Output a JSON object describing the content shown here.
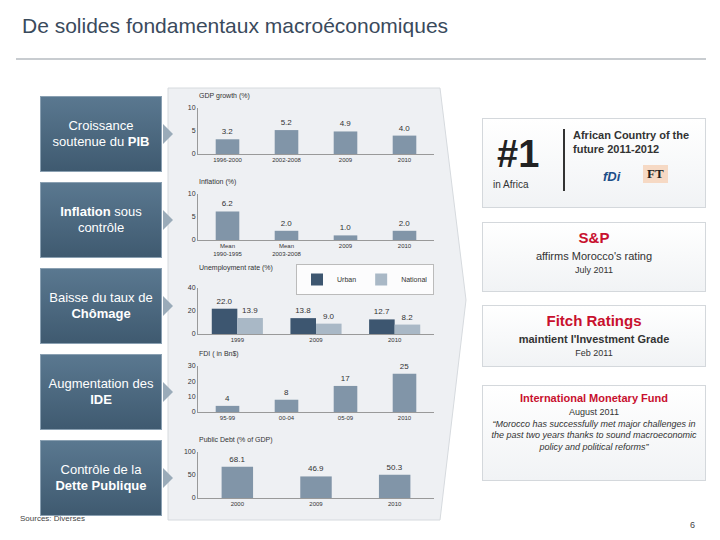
{
  "title": "De solides fondamentaux macroéconomiques",
  "sidebar": [
    {
      "before": "Croissance soutenue du ",
      "bold": "PIB",
      "after": ""
    },
    {
      "before": "",
      "bold": "Inflation",
      "after": " sous contrôle"
    },
    {
      "before": "Baisse du taux de ",
      "bold": "Chômage",
      "after": ""
    },
    {
      "before": "Augmentation des ",
      "bold": "IDE",
      "after": ""
    },
    {
      "before": "Contrôle de la ",
      "bold": "Dette Publique",
      "after": ""
    }
  ],
  "chart_data": [
    {
      "type": "bar",
      "title": "GDP growth (%)",
      "categories": [
        "1996-2000",
        "2002-2008",
        "2009",
        "2010"
      ],
      "values": [
        3.2,
        5.2,
        4.9,
        4.0
      ],
      "value_labels": [
        "3.2",
        "5.2",
        "4.9",
        "4.0"
      ],
      "color": "#8195a8",
      "ylim": [
        0,
        10
      ],
      "yticks": [
        0,
        5,
        10
      ],
      "grid": false,
      "data_labels": true
    },
    {
      "type": "bar",
      "title": "Inflation (%)",
      "categories": [
        "Mean 1990-1995",
        "Mean 2003-2008",
        "2009",
        "2010"
      ],
      "values": [
        6.2,
        2.0,
        1.0,
        2.0
      ],
      "value_labels": [
        "6.2",
        "2.0",
        "1.0",
        "2.0"
      ],
      "color": "#8195a8",
      "ylim": [
        0,
        10
      ],
      "yticks": [
        0,
        5,
        10
      ],
      "grid": false,
      "data_labels": true
    },
    {
      "type": "bar",
      "title": "Unemployment rate (%)",
      "categories": [
        "1999",
        "2009",
        "2010"
      ],
      "series": [
        {
          "name": "Urban",
          "color": "#3d5670",
          "values": [
            22.0,
            13.8,
            12.7
          ],
          "value_labels": [
            "22.0",
            "13.8",
            "12.7"
          ]
        },
        {
          "name": "National",
          "color": "#a9b8c6",
          "values": [
            13.9,
            9.0,
            8.2
          ],
          "value_labels": [
            "13.9",
            "9.0",
            "8.2"
          ]
        }
      ],
      "ylim": [
        0,
        40
      ],
      "yticks": [
        0,
        20,
        40
      ],
      "grid": false,
      "data_labels": true,
      "legend": "top-right"
    },
    {
      "type": "bar",
      "title": "FDI ( in Bn$)",
      "categories": [
        "95-99",
        "00-04",
        "05-09",
        "2010"
      ],
      "values": [
        4,
        8,
        17,
        25
      ],
      "color": "#8195a8",
      "ylim": [
        0,
        30
      ],
      "yticks": [
        0,
        10,
        20,
        30
      ],
      "grid": false,
      "data_labels": true
    },
    {
      "type": "bar",
      "title": "Public Debt (% of GDP)",
      "categories": [
        "2000",
        "2009",
        "2010"
      ],
      "values": [
        68.1,
        46.9,
        50.3
      ],
      "value_labels": [
        "68.1",
        "46.9",
        "50.3"
      ],
      "color": "#8195a8",
      "ylim": [
        0,
        100
      ],
      "yticks": [
        0,
        50,
        100
      ],
      "grid": false,
      "data_labels": true
    }
  ],
  "right_panel": {
    "rank": {
      "big": "#1",
      "sub": "in Africa",
      "text": "African Country of the future 2011-2012",
      "logos": [
        "fDi",
        "FT"
      ]
    },
    "ratings": [
      {
        "name": "S&P",
        "text": "affirms Morocco's rating",
        "date": "July 2011"
      },
      {
        "name": "Fitch Ratings",
        "text": "maintient l'Investment Grade",
        "date": "Feb 2011"
      },
      {
        "name": "International Monetary Fund",
        "date": "August 2011",
        "quote": "“Morocco has successfully met major challenges in the past two years thanks to sound macroeconomic policy and political reforms”"
      }
    ]
  },
  "footer": {
    "source": "Sources: Diverses",
    "page": "6"
  }
}
